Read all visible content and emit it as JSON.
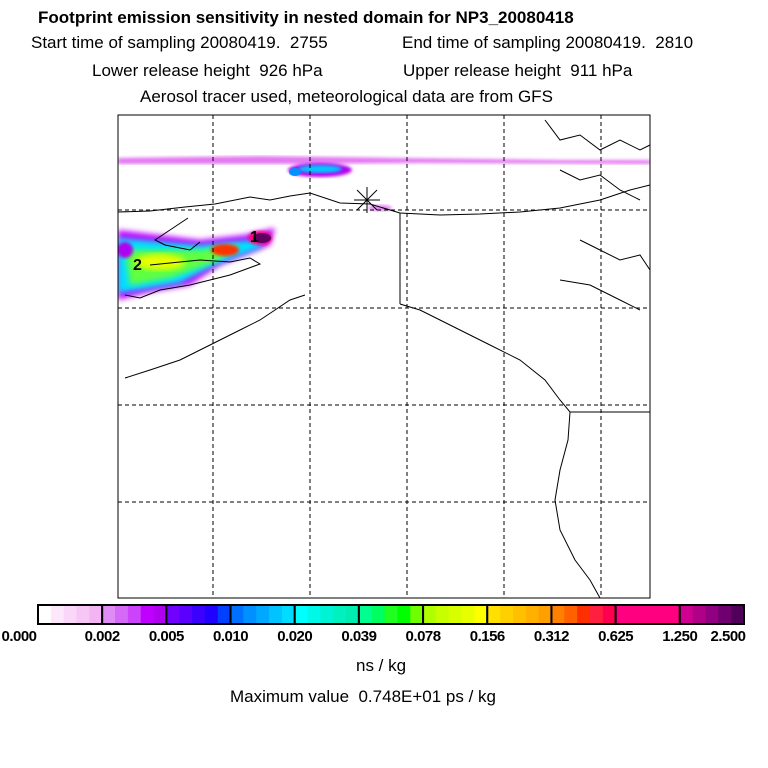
{
  "title": "Footprint emission sensitivity in nested domain for NP3_20080418",
  "start_time": "Start time of sampling 20080419.  2755",
  "end_time": "End time of sampling 20080419.  2810",
  "lower_release": "Lower release height  926 hPa",
  "upper_release": "Upper release height  911 hPa",
  "tracer_note": "Aerosol tracer used, meteorological data are from GFS",
  "map": {
    "markers": [
      "1",
      "2"
    ],
    "receptor_symbol": "asterisk"
  },
  "colorbar": {
    "labels": [
      "0.000",
      "0.002",
      "0.005",
      "0.010",
      "0.020",
      "0.039",
      "0.078",
      "0.156",
      "0.312",
      "0.625",
      "1.250",
      "2.500"
    ],
    "segments": [
      [
        "#ffffff",
        "#fde8fb",
        "#fad6f8",
        "#f6c6f5",
        "#f2b4f2"
      ],
      [
        "#e08cf6",
        "#d66af8",
        "#cc44fa",
        "#c000ff",
        "#b000f0"
      ],
      [
        "#7000ff",
        "#5a00ff",
        "#3c00ff",
        "#2000ff",
        "#0040ff"
      ],
      [
        "#0070ff",
        "#0090ff",
        "#00a8ff",
        "#00c4ff",
        "#00dcff"
      ],
      [
        "#00ffff",
        "#00f8e8",
        "#00f4d4",
        "#00f0c0",
        "#00ecb0"
      ],
      [
        "#00ff90",
        "#00ff60",
        "#20ff20",
        "#00ff00",
        "#70ff00"
      ],
      [
        "#b0ff00",
        "#c8ff00",
        "#d8ff00",
        "#e8ff00",
        "#ffff00"
      ],
      [
        "#ffe000",
        "#ffd000",
        "#ffc000",
        "#ffb000",
        "#ffa000"
      ],
      [
        "#ff8000",
        "#ff6000",
        "#ff3000",
        "#ff2040",
        "#ff0050"
      ],
      [
        "#ff0080",
        "#ff0080",
        "#ff0080",
        "#ff0080",
        "#ff0080"
      ],
      [
        "#d00090",
        "#b00088",
        "#900080",
        "#700070",
        "#500058"
      ]
    ],
    "unit": "ns / kg"
  },
  "max_value": "Maximum value  0.748E+01 ps / kg"
}
